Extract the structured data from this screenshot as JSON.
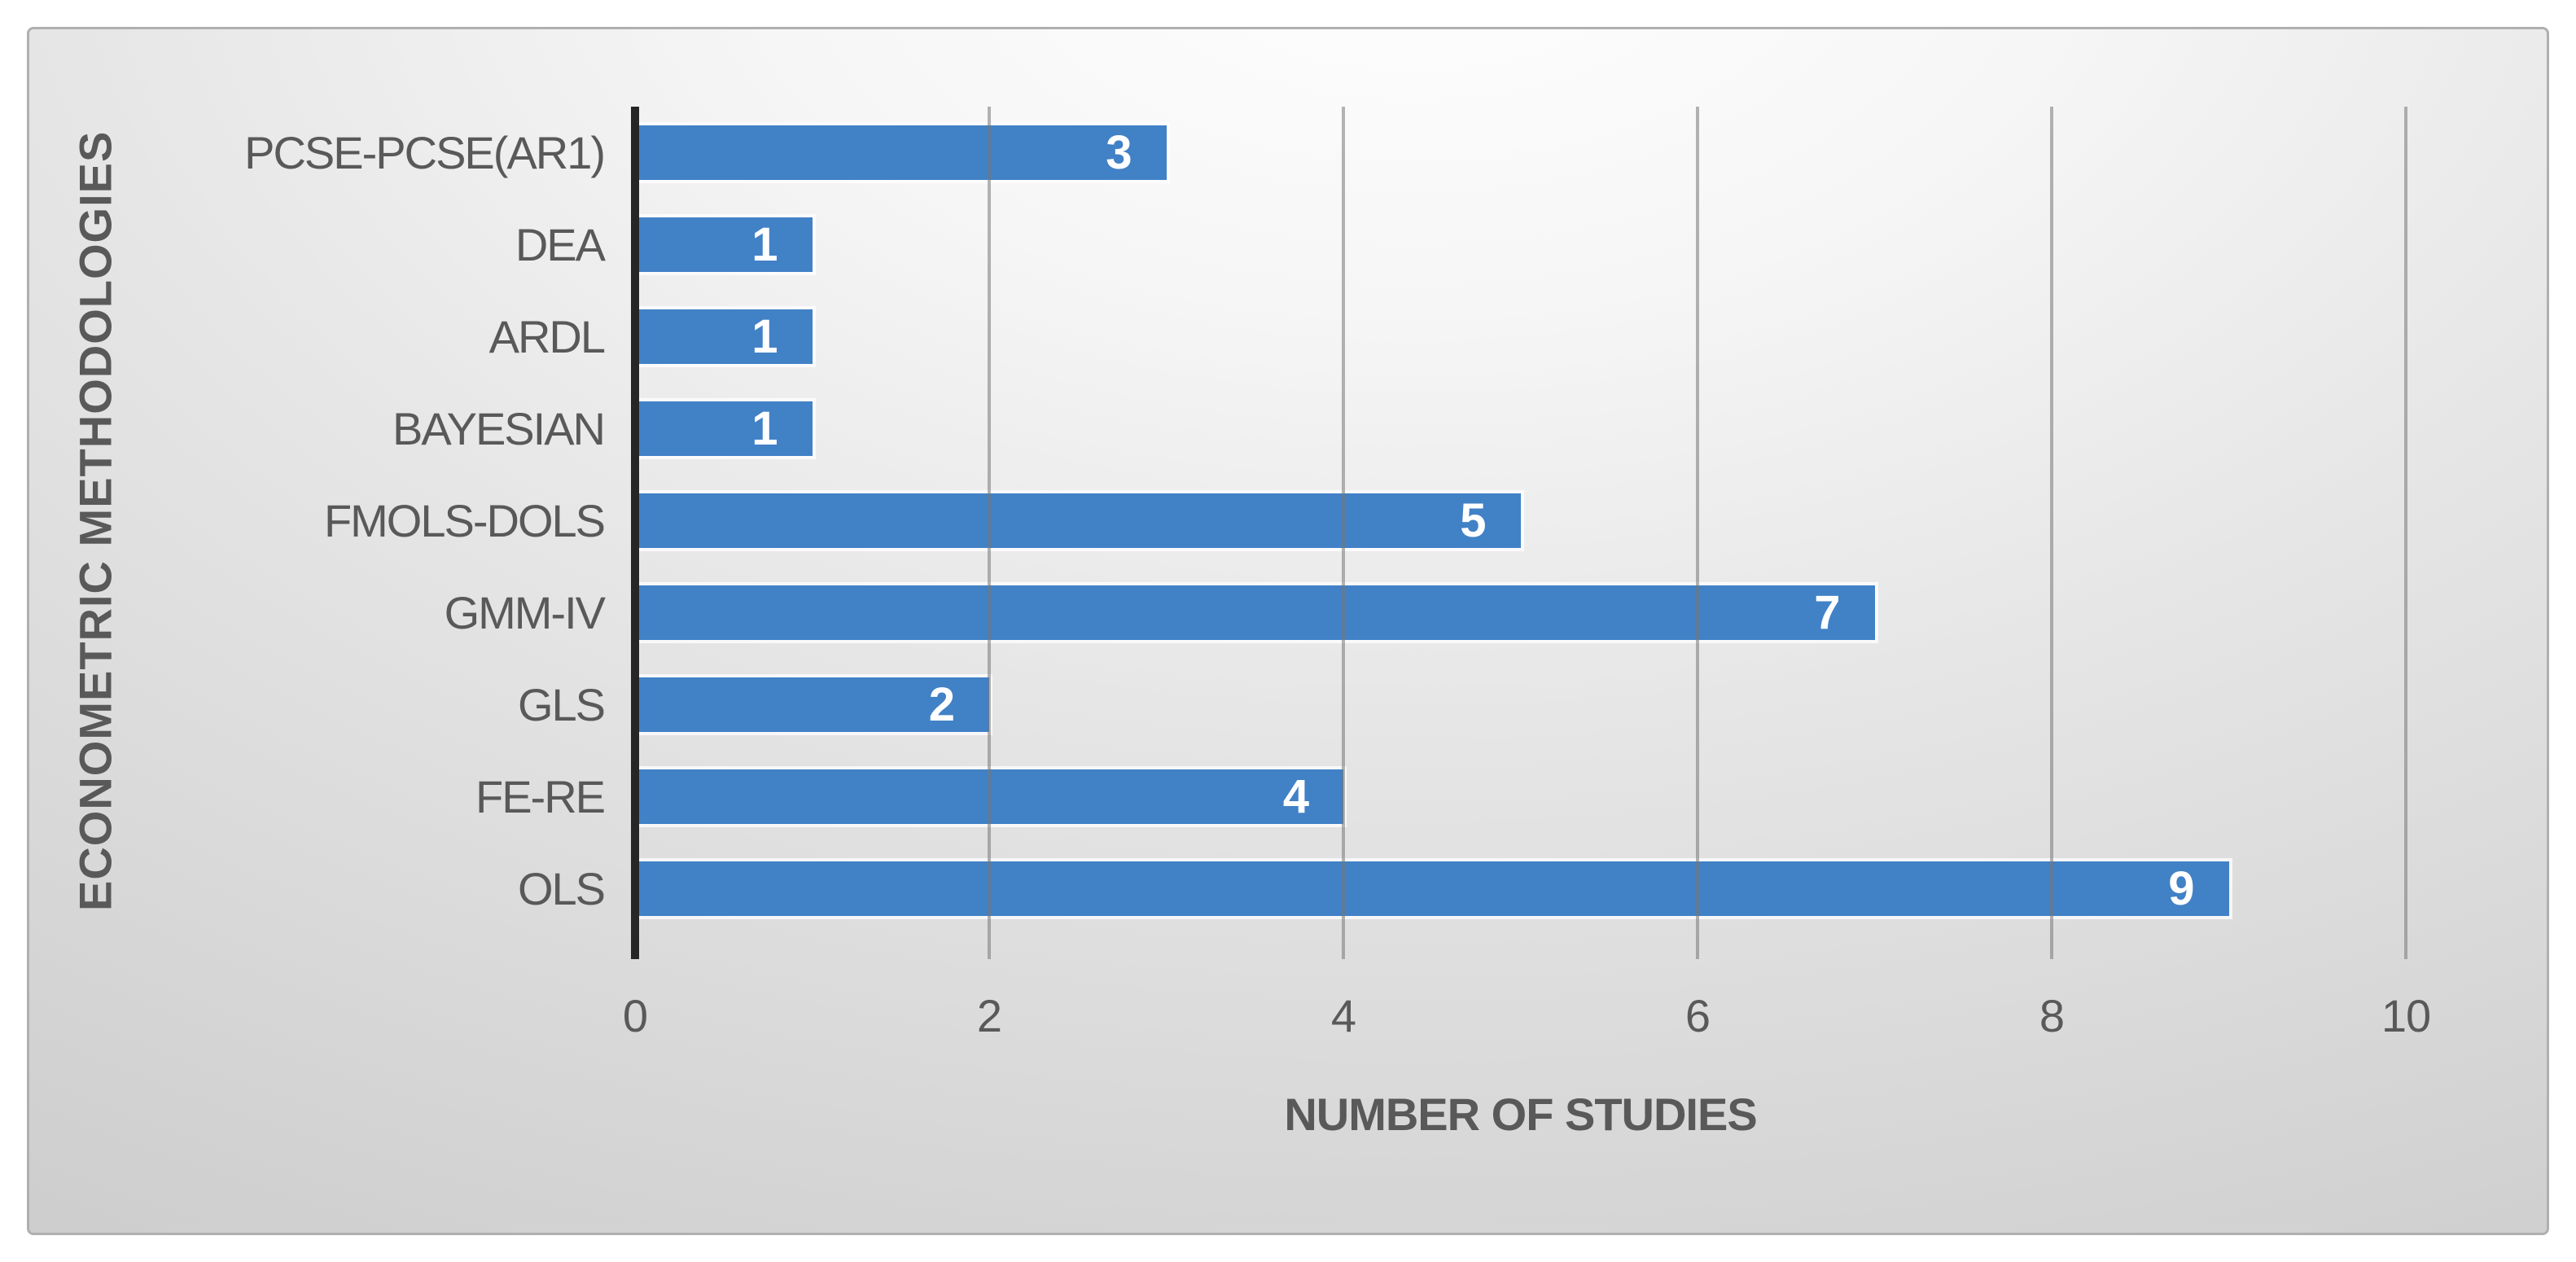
{
  "chart_data": {
    "type": "bar",
    "orientation": "horizontal",
    "title": "",
    "categories": [
      "PCSE-PCSE(AR1)",
      "DEA",
      "ARDL",
      "BAYESIAN",
      "FMOLS-DOLS",
      "GMM-IV",
      "GLS",
      "FE-RE",
      "OLS"
    ],
    "values": [
      3,
      1,
      1,
      1,
      5,
      7,
      2,
      4,
      9
    ],
    "xlabel": "NUMBER OF STUDIES",
    "ylabel": "ECONOMETRIC METHODOLOGIES",
    "xlim": [
      0,
      10
    ],
    "xticks": [
      0,
      2,
      4,
      6,
      8,
      10
    ],
    "grid": "vertical gridlines on, drawn over bars",
    "legend": false,
    "value_labels": "inside end, white bold",
    "colors": {
      "bar_fill": "#4181C6",
      "bar_halo": "#FFFFFF",
      "value_label": "#FFFFFF",
      "axis_line": "#262626",
      "gridline": "#767676",
      "text": "#595959",
      "canvas_border": "#B0B0B0",
      "background_center": "#FFFFFF",
      "background_edge": "#C6C6C6"
    }
  }
}
